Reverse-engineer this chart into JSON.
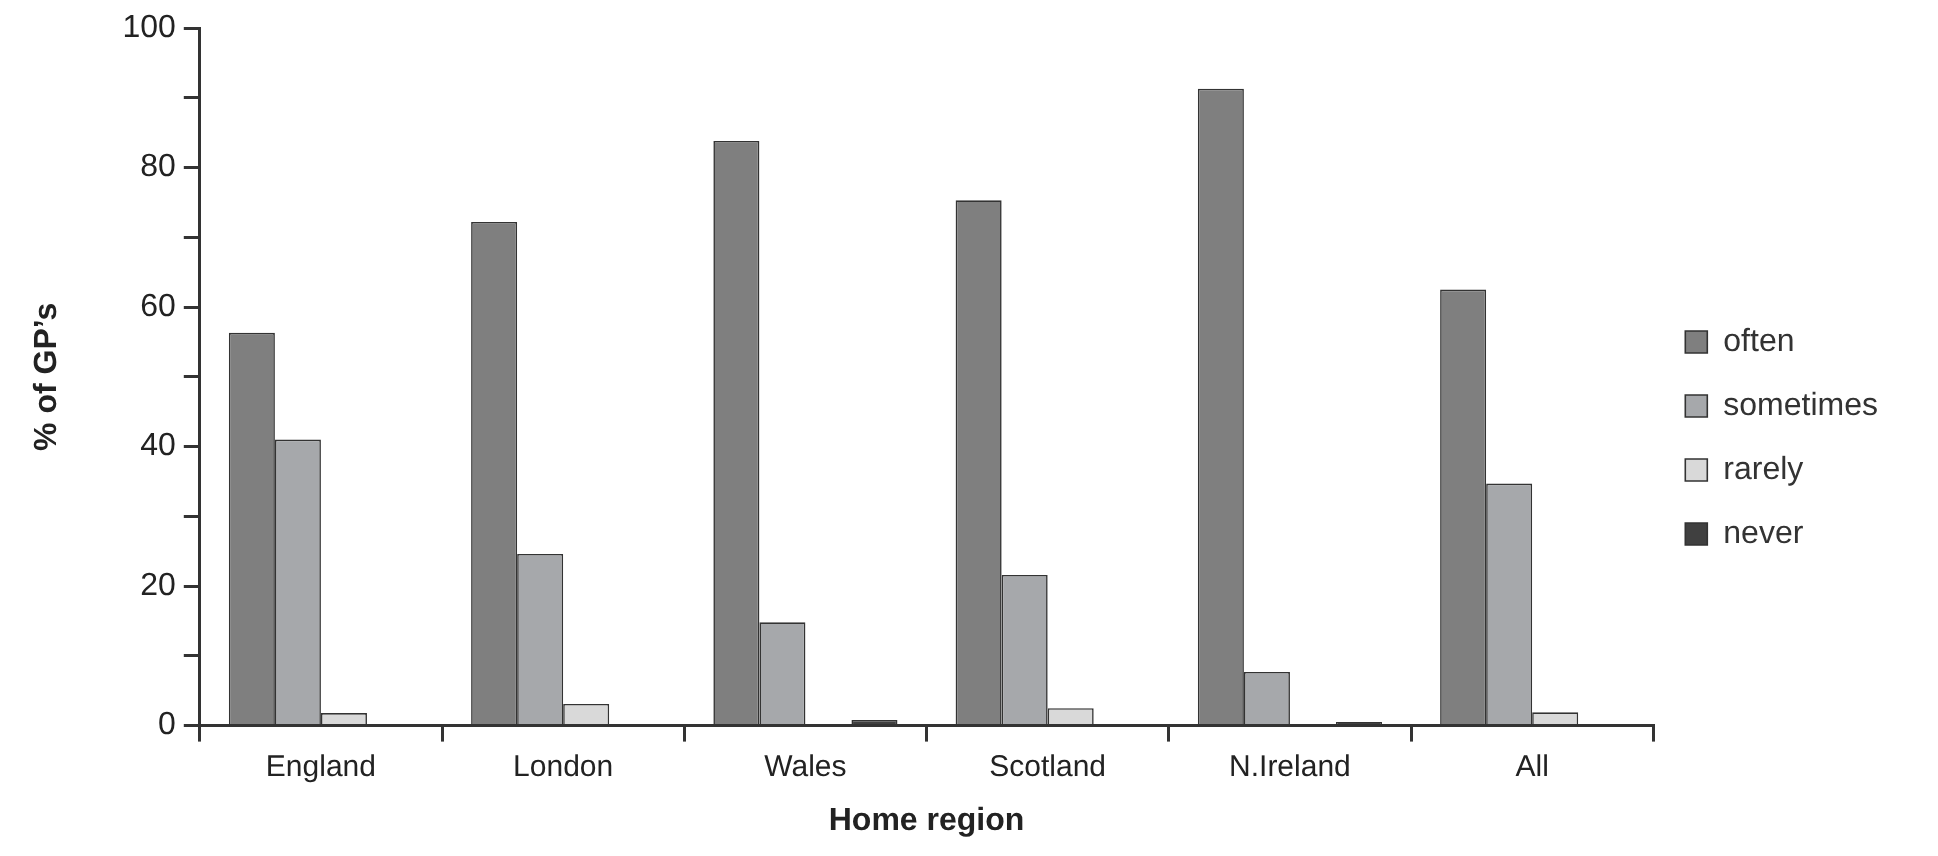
{
  "chart_data": {
    "type": "bar",
    "xlabel": "Home region",
    "ylabel": "% of GP’s",
    "categories": [
      "England",
      "London",
      "Wales",
      "Scotland",
      "N.Ireland",
      "All"
    ],
    "series": [
      {
        "name": "often",
        "color": "#7f7f7f",
        "values": [
          56.3,
          72.2,
          83.8,
          75.3,
          91.3,
          62.5
        ]
      },
      {
        "name": "sometimes",
        "color": "#a6a8ab",
        "values": [
          41.0,
          24.6,
          14.8,
          21.6,
          7.7,
          34.7
        ]
      },
      {
        "name": "rarely",
        "color": "#d9d9d9",
        "values": [
          1.8,
          3.1,
          null,
          2.5,
          null,
          1.9
        ]
      },
      {
        "name": "never",
        "color": "#404040",
        "values": [
          null,
          null,
          0.8,
          null,
          0.5,
          null
        ]
      }
    ],
    "ylim": [
      0,
      100
    ],
    "yticks": [
      0,
      {
        "value": 10,
        "label": null
      },
      20,
      {
        "value": 30,
        "label": null
      },
      40,
      {
        "value": 50,
        "label": null
      },
      60,
      {
        "value": 70,
        "label": null
      },
      80,
      {
        "value": 90,
        "label": null
      },
      100
    ],
    "grid": false,
    "legend": "right"
  }
}
